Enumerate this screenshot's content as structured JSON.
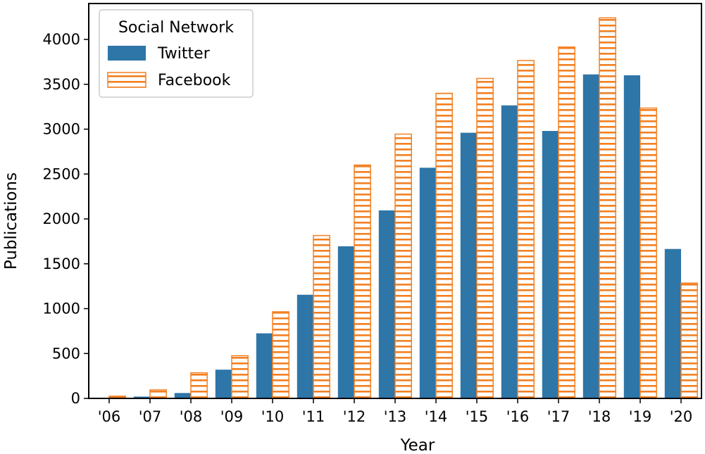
{
  "chart_data": {
    "type": "bar",
    "title": "",
    "xlabel": "Year",
    "ylabel": "Publications",
    "categories": [
      "'06",
      "'07",
      "'08",
      "'09",
      "'10",
      "'11",
      "'12",
      "'13",
      "'14",
      "'15",
      "'16",
      "'17",
      "'18",
      "'19",
      "'20"
    ],
    "series": [
      {
        "name": "Twitter",
        "color": "#2e75a8",
        "pattern": "solid",
        "values": [
          5,
          20,
          60,
          320,
          725,
          1155,
          1695,
          2095,
          2570,
          2960,
          3265,
          2980,
          3610,
          3600,
          1665
        ]
      },
      {
        "name": "Facebook",
        "color": "#f28022",
        "pattern": "horizontal-hatch",
        "values": [
          25,
          95,
          285,
          475,
          965,
          1815,
          2600,
          2945,
          3400,
          3565,
          3765,
          3915,
          4240,
          3235,
          1285
        ]
      }
    ],
    "ylim": [
      0,
      4400
    ],
    "yticks": [
      0,
      500,
      1000,
      1500,
      2000,
      2500,
      3000,
      3500,
      4000
    ],
    "legend": {
      "title": "Social Network",
      "position": "top-left"
    },
    "grid": false
  }
}
